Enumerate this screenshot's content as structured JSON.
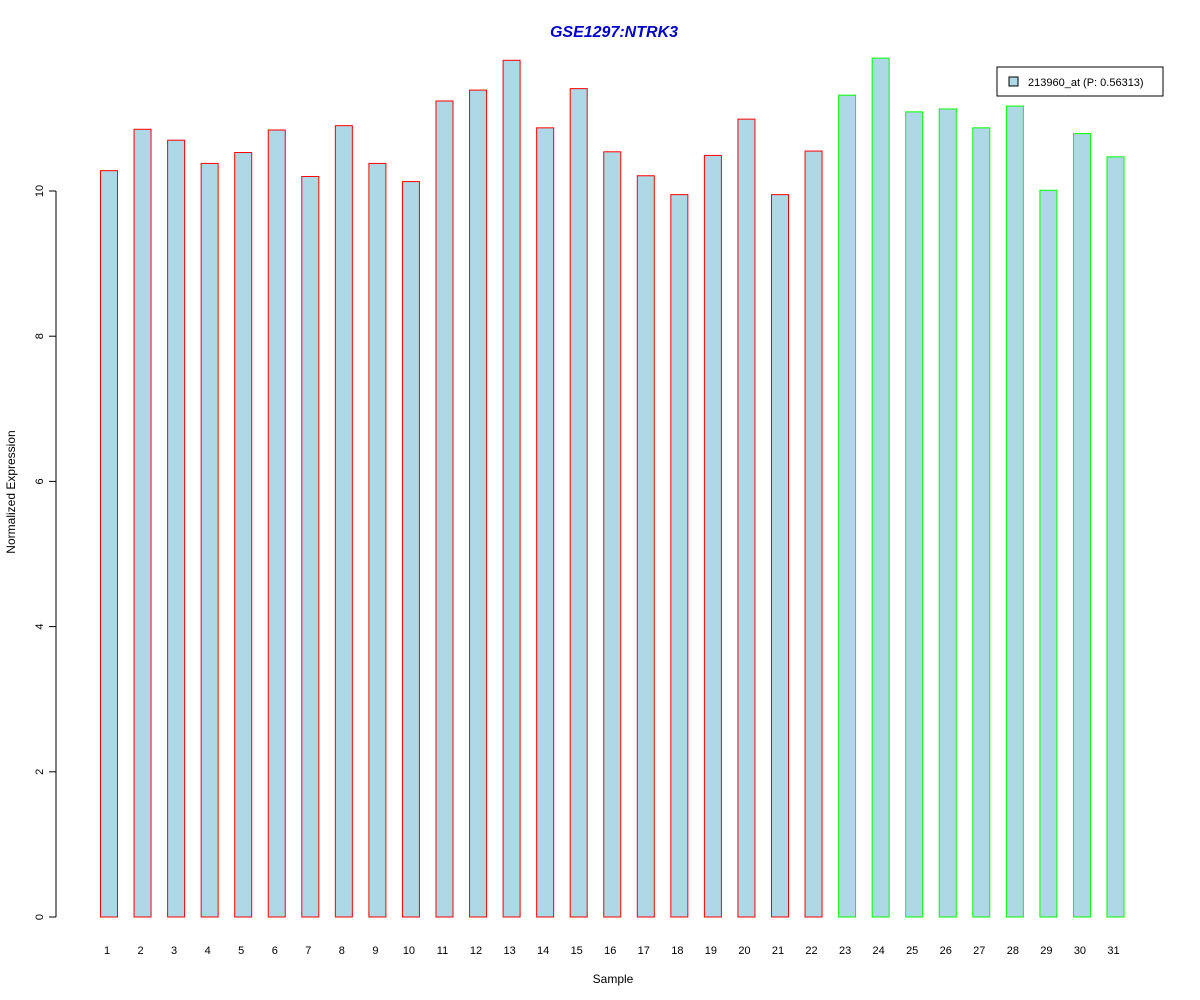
{
  "chart_data": {
    "type": "bar",
    "title": "GSE1297:NTRK3",
    "xlabel": "Sample",
    "ylabel": "Normalized Expression",
    "ylim": [
      0,
      12
    ],
    "yticks": [
      0,
      2,
      4,
      6,
      8,
      10
    ],
    "categories": [
      "1",
      "2",
      "3",
      "4",
      "5",
      "6",
      "7",
      "8",
      "9",
      "10",
      "11",
      "12",
      "13",
      "14",
      "15",
      "16",
      "17",
      "18",
      "19",
      "20",
      "21",
      "22",
      "23",
      "24",
      "25",
      "26",
      "27",
      "28",
      "29",
      "30",
      "31"
    ],
    "values": [
      10.28,
      10.85,
      10.7,
      10.38,
      10.53,
      10.84,
      10.2,
      10.9,
      10.38,
      10.13,
      11.24,
      11.39,
      11.8,
      10.87,
      11.41,
      10.54,
      10.21,
      9.95,
      10.49,
      10.99,
      9.95,
      10.55,
      11.32,
      11.83,
      11.09,
      11.13,
      10.87,
      11.17,
      10.01,
      10.79,
      10.47
    ],
    "groups": [
      1,
      1,
      1,
      1,
      1,
      1,
      1,
      1,
      1,
      1,
      1,
      1,
      1,
      1,
      1,
      1,
      1,
      1,
      1,
      1,
      1,
      1,
      2,
      2,
      2,
      2,
      2,
      2,
      2,
      2,
      2
    ],
    "legend": {
      "label": "213960_at (P: 0.56313)",
      "position": "top-right"
    },
    "grid": false,
    "colors": {
      "fill": "#add8e6",
      "group1_border": "#ff0000",
      "group2_border": "#00ff00",
      "title": "#0000cd",
      "axis": "#000000"
    }
  }
}
